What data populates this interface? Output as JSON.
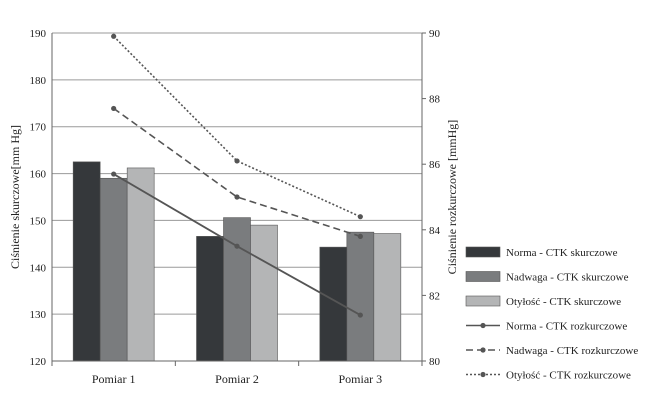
{
  "chart_data": {
    "type": "bar",
    "categories": [
      "Pomiar 1",
      "Pomiar 2",
      "Pomiar 3"
    ],
    "ylabel_left": "Ciśnienie skurczowe[mm Hg]",
    "ylabel_right": "Ciśnienie rozkurczowe [mmHg]",
    "ylim_left": [
      120,
      190
    ],
    "yticks_left": [
      120,
      130,
      140,
      150,
      160,
      170,
      180,
      190
    ],
    "ylim_right": [
      80,
      90
    ],
    "yticks_right": [
      80,
      82,
      84,
      86,
      88,
      90
    ],
    "grid": true,
    "legend_position": "right",
    "bar_series": [
      {
        "name": "Norma - CTK skurczowe",
        "values": [
          162.5,
          146.6,
          144.3
        ],
        "color": "#35383b"
      },
      {
        "name": "Nadwaga - CTK skurczowe",
        "values": [
          159.0,
          150.6,
          147.5
        ],
        "color": "#7a7c7e"
      },
      {
        "name": "Otyłość - CTK skurczowe",
        "values": [
          161.2,
          149.0,
          147.2
        ],
        "color": "#b4b5b6"
      }
    ],
    "line_series": [
      {
        "name": "Norma - CTK rozkurczowe",
        "values": [
          85.7,
          83.5,
          81.4
        ],
        "style": "solid",
        "color": "#555555"
      },
      {
        "name": "Nadwaga - CTK rozkurczowe",
        "values": [
          87.7,
          85.0,
          83.8
        ],
        "style": "dashed",
        "color": "#555555"
      },
      {
        "name": "Otyłość - CTK rozkurczowe",
        "values": [
          89.9,
          86.1,
          84.4
        ],
        "style": "dotted",
        "color": "#555555"
      }
    ]
  }
}
